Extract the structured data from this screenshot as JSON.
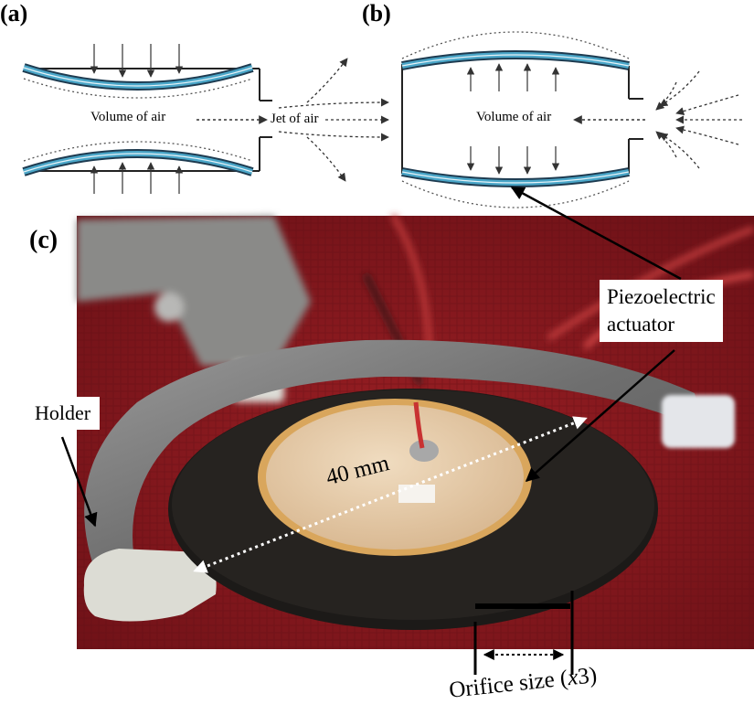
{
  "panels": {
    "a": {
      "letter": "(a)",
      "volume_label": "Volume of air",
      "jet_label": "Jet of air"
    },
    "b": {
      "letter": "(b)",
      "volume_label": "Volume of air"
    },
    "c": {
      "letter": "(c)",
      "piezo_label_line1": "Piezoelectric",
      "piezo_label_line2": "actuator",
      "holder_label": "Holder",
      "dimension_label": "40 mm",
      "orifice_label": "Orifice size (",
      "orifice_var": "x",
      "orifice_suffix": "3)"
    }
  },
  "colors": {
    "actuator_blue": "#4aa6c8",
    "fabric_red": "#8b1a1e",
    "disc_black": "#1c1a18",
    "piezo_gold": "#d9a65c",
    "piezo_ceramic": "#e8cfae"
  }
}
